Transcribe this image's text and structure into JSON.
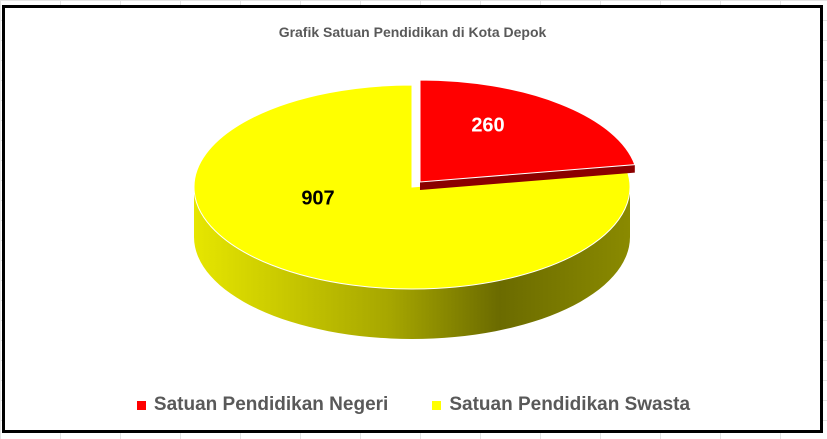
{
  "chart_data": {
    "type": "pie",
    "style": "3d-exploded",
    "title": "Grafik Satuan Pendidikan di Kota Depok",
    "categories": [
      "Satuan Pendidikan Negeri",
      "Satuan Pendidikan Swasta"
    ],
    "values": [
      260,
      907
    ],
    "labels": [
      "260",
      "907"
    ],
    "colors": [
      "#ff0000",
      "#ffff00"
    ],
    "legend_position": "bottom"
  }
}
